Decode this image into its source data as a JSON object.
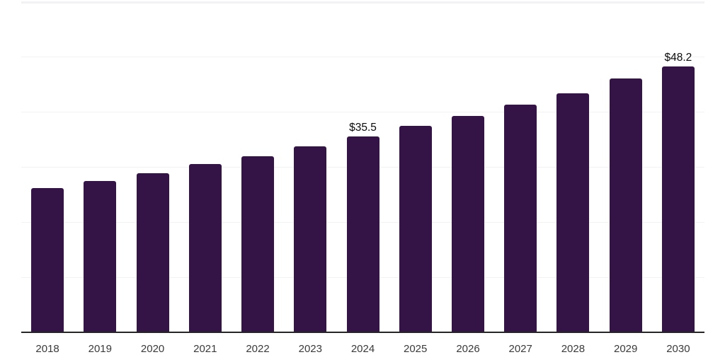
{
  "chart_data": {
    "type": "bar",
    "title": "",
    "xlabel": "",
    "ylabel": "",
    "categories": [
      "2018",
      "2019",
      "2020",
      "2021",
      "2022",
      "2023",
      "2024",
      "2025",
      "2026",
      "2027",
      "2028",
      "2029",
      "2030"
    ],
    "values": [
      26.1,
      27.5,
      28.8,
      30.5,
      31.9,
      33.7,
      35.5,
      37.4,
      39.3,
      41.3,
      43.4,
      46.0,
      48.2
    ],
    "value_prefix": "$",
    "data_labels": [
      {
        "category": "2024",
        "text": "$35.5"
      },
      {
        "category": "2030",
        "text": "$48.2"
      }
    ],
    "ylim": [
      0,
      60
    ],
    "grid": {
      "visible": true,
      "interval": 10,
      "y_tick_labels_visible": false
    },
    "legend": "none",
    "colors": {
      "bar": "#341347",
      "axis": "#262626",
      "gridline": "#f2f2f4",
      "tick_label": "#3a3a3a",
      "data_label": "#0a0a0a",
      "background": "#ffffff"
    }
  }
}
